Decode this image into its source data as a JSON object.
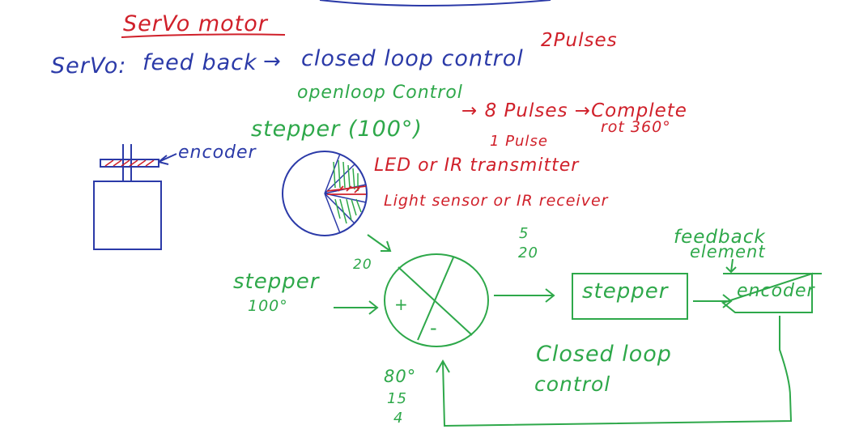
{
  "colors": {
    "red": "#d0202a",
    "blue": "#2b3aa8",
    "green": "#2ea84a",
    "background": "#ffffff"
  },
  "title": "SerVo motor",
  "servo_line": {
    "lhs": "SerVo:",
    "feedback": "feed back",
    "arrow": "→",
    "rhs": "closed loop control"
  },
  "pulses_note": "2Pulses",
  "open_loop": "openloop Control",
  "stepper_open": "stepper (100°)",
  "pulses_arrow": "→ 8 Pulses →Complete",
  "rot": "rot 360°",
  "one_pulse": "1 Pulse",
  "encoder_label": "encoder",
  "led_line": "LED or IR transmitter",
  "light_line": "Light sensor or IR receiver",
  "time_note": [
    "5",
    "20"
  ],
  "feedback_element": [
    "feedback",
    "element"
  ],
  "input_label": [
    "stepper",
    "100°"
  ],
  "arrow_value": "20",
  "sum_plus": "+",
  "sum_minus": "-",
  "stepper_block": "stepper",
  "encoder_block": "encoder",
  "closed_loop": [
    "Closed loop",
    "control"
  ],
  "bottom_values": [
    "80°",
    "15",
    "4"
  ]
}
